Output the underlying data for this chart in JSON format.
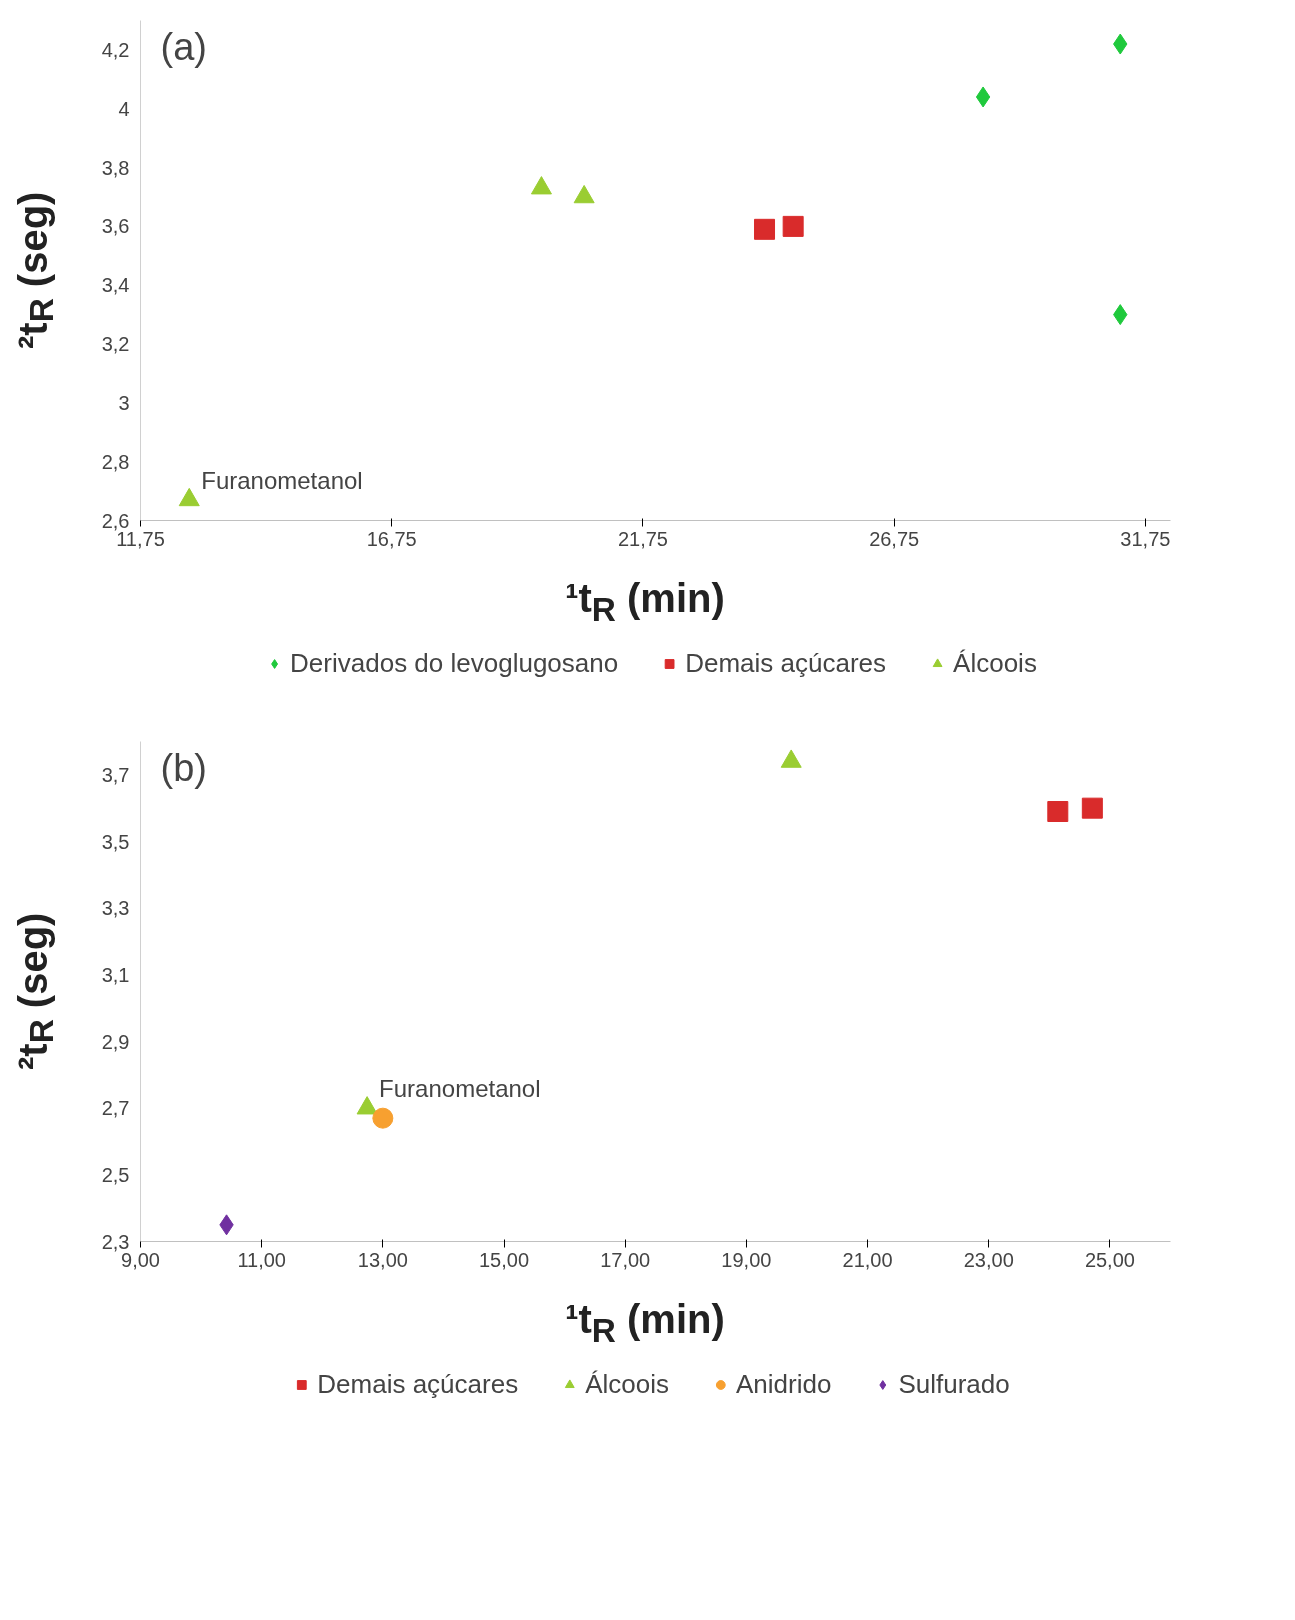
{
  "chart_data": [
    {
      "type": "scatter",
      "title": "(a)",
      "xlabel": "¹t$_{R}$ (min)",
      "ylabel": "²t$_{R}$ (seg)",
      "xlim": [
        11.75,
        32.25
      ],
      "ylim": [
        2.6,
        4.3
      ],
      "xticks": [
        {
          "value": 11.75,
          "label": "11,75"
        },
        {
          "value": 16.75,
          "label": "16,75"
        },
        {
          "value": 21.75,
          "label": "21,75"
        },
        {
          "value": 26.75,
          "label": "26,75"
        },
        {
          "value": 31.75,
          "label": "31,75"
        }
      ],
      "yticks": [
        {
          "value": 2.6,
          "label": "2,6"
        },
        {
          "value": 2.8,
          "label": "2,8"
        },
        3,
        {
          "value": 3.2,
          "label": "3,2"
        },
        {
          "value": 3.4,
          "label": "3,4"
        },
        {
          "value": 3.6,
          "label": "3,6"
        },
        {
          "value": 3.8,
          "label": "3,8"
        },
        4,
        {
          "value": 4.2,
          "label": "4,2"
        }
      ],
      "grid": false,
      "legend": "bottom",
      "series": [
        {
          "name": "Derivados do levoglugosano",
          "color": "#1fc93c",
          "marker": "diamond",
          "x": [
            28.52,
            31.25,
            31.25
          ],
          "values": [
            4.04,
            4.22,
            3.3
          ]
        },
        {
          "name": "Demais açúcares",
          "color": "#d92b2b",
          "marker": "square",
          "x": [
            24.17,
            24.74
          ],
          "values": [
            3.59,
            3.6
          ]
        },
        {
          "name": "Álcoois",
          "color": "#9acd32",
          "marker": "triangle",
          "x": [
            19.73,
            20.58,
            12.72
          ],
          "values": [
            3.73,
            3.7,
            2.67
          ]
        }
      ],
      "annotations": [
        {
          "text": "Furanometanol",
          "x": 12.72,
          "y": 2.67
        }
      ]
    },
    {
      "type": "scatter",
      "title": "(b)",
      "xlabel": "¹t$_{R}$ (min)",
      "ylabel": "²t$_{R}$ (seg)",
      "xlim": [
        9,
        26
      ],
      "ylim": [
        2.3,
        3.8
      ],
      "xticks": [
        {
          "value": 9,
          "label": "9,00"
        },
        {
          "value": 11,
          "label": "11,00"
        },
        {
          "value": 13,
          "label": "13,00"
        },
        {
          "value": 15,
          "label": "15,00"
        },
        {
          "value": 17,
          "label": "17,00"
        },
        {
          "value": 19,
          "label": "19,00"
        },
        {
          "value": 21,
          "label": "21,00"
        },
        {
          "value": 23,
          "label": "23,00"
        },
        {
          "value": 25,
          "label": "25,00"
        }
      ],
      "yticks": [
        {
          "value": 2.3,
          "label": "2,3"
        },
        {
          "value": 2.5,
          "label": "2,5"
        },
        {
          "value": 2.7,
          "label": "2,7"
        },
        {
          "value": 2.9,
          "label": "2,9"
        },
        {
          "value": 3.1,
          "label": "3,1"
        },
        {
          "value": 3.3,
          "label": "3,3"
        },
        {
          "value": 3.5,
          "label": "3,5"
        },
        {
          "value": 3.7,
          "label": "3,7"
        }
      ],
      "grid": false,
      "legend": "bottom",
      "series": [
        {
          "name": "Demais açúcares",
          "color": "#d92b2b",
          "marker": "square",
          "x": [
            24.14,
            24.71
          ],
          "values": [
            3.59,
            3.6
          ]
        },
        {
          "name": "Álcoois",
          "color": "#9acd32",
          "marker": "triangle",
          "x": [
            19.74,
            12.74
          ],
          "values": [
            3.74,
            2.7
          ]
        },
        {
          "name": "Anidrido",
          "color": "#f7a030",
          "marker": "circle",
          "x": [
            13.0
          ],
          "values": [
            2.67
          ]
        },
        {
          "name": "Sulfurado",
          "color": "#7030a0",
          "marker": "diamond",
          "x": [
            10.42
          ],
          "values": [
            2.35
          ]
        }
      ],
      "annotations": [
        {
          "text": "Furanometanol",
          "x": 12.74,
          "y": 2.7
        }
      ]
    }
  ]
}
